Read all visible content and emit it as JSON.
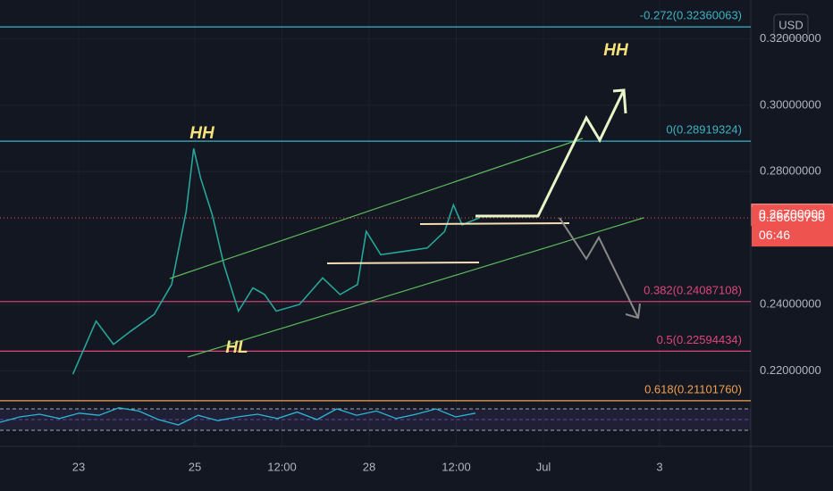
{
  "chart_data": {
    "type": "line",
    "currency": "USD",
    "x": [
      22.9,
      23.3,
      23.6,
      23.9,
      24.3,
      24.6,
      24.85,
      24.98,
      25.1,
      25.3,
      25.5,
      25.75,
      26.0,
      26.2,
      26.4,
      26.8,
      27.2,
      27.5,
      27.8,
      27.95,
      28.2,
      28.6,
      29.0,
      29.3,
      29.45,
      29.6,
      29.9
    ],
    "series": [
      {
        "color": "#26a69a",
        "values": [
          0.219,
          0.235,
          0.228,
          0.232,
          0.237,
          0.246,
          0.268,
          0.287,
          0.278,
          0.267,
          0.252,
          0.238,
          0.245,
          0.243,
          0.238,
          0.24,
          0.248,
          0.243,
          0.246,
          0.262,
          0.255,
          0.256,
          0.257,
          0.262,
          0.27,
          0.264,
          0.2661
        ]
      }
    ],
    "xlim": [
      21.646,
      34.569
    ],
    "xticks": [
      23,
      25,
      {
        "value": 26.5,
        "label": "12:00"
      },
      28,
      {
        "value": 29.5,
        "label": "12:00"
      },
      {
        "value": 31,
        "label": "Jul"
      },
      {
        "value": 33,
        "label": "3"
      }
    ],
    "ylim": [
      0.2134,
      0.3317
    ],
    "yticks": [
      {
        "value": 0.22,
        "label": "0.22000000"
      },
      {
        "value": 0.24,
        "label": "0.24000000"
      },
      {
        "value": 0.28,
        "label": "0.28000000"
      },
      {
        "value": 0.3,
        "label": "0.30000000"
      },
      {
        "value": 0.32,
        "label": "0.32000000"
      }
    ],
    "levels": [
      {
        "label": "-0.272(0.32360063)",
        "value": 0.32360063,
        "color": "#3bb3c3"
      },
      {
        "label": "0(0.28919324)",
        "value": 0.28919324,
        "color": "#3bb3c3"
      },
      {
        "label": "0.382(0.24087108)",
        "value": 0.24087108,
        "color": "#e0457b"
      },
      {
        "label": "0.5(0.22594434)",
        "value": 0.22594434,
        "color": "#e0457b"
      },
      {
        "label": "0.618(0.21101760)",
        "value": 0.2110176,
        "color": "#f0a050"
      }
    ],
    "price_labels": [
      {
        "value": 0.267,
        "label": "0.26700000"
      },
      {
        "value": 0.2660575,
        "label": "0.26605750"
      }
    ],
    "countdown": "06:46",
    "annotations": [
      "HH",
      "HL",
      "HH"
    ],
    "rsi": {
      "values": [
        45,
        55,
        60,
        52,
        62,
        58,
        72,
        66,
        50,
        40,
        58,
        48,
        55,
        60,
        52,
        64,
        50,
        70,
        58,
        66,
        52,
        60,
        70,
        55,
        62
      ],
      "ylim": [
        0,
        100
      ],
      "levels": [
        70,
        50,
        30
      ]
    }
  }
}
